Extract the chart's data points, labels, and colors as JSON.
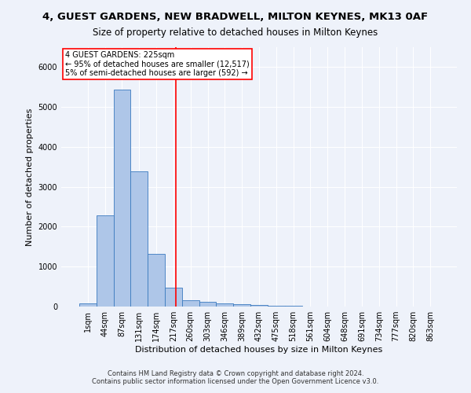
{
  "title": "4, GUEST GARDENS, NEW BRADWELL, MILTON KEYNES, MK13 0AF",
  "subtitle": "Size of property relative to detached houses in Milton Keynes",
  "xlabel": "Distribution of detached houses by size in Milton Keynes",
  "ylabel": "Number of detached properties",
  "footer_line1": "Contains HM Land Registry data © Crown copyright and database right 2024.",
  "footer_line2": "Contains public sector information licensed under the Open Government Licence v3.0.",
  "categories": [
    "1sqm",
    "44sqm",
    "87sqm",
    "131sqm",
    "174sqm",
    "217sqm",
    "260sqm",
    "303sqm",
    "346sqm",
    "389sqm",
    "432sqm",
    "475sqm",
    "518sqm",
    "561sqm",
    "604sqm",
    "648sqm",
    "691sqm",
    "734sqm",
    "777sqm",
    "820sqm",
    "863sqm"
  ],
  "bar_values": [
    75,
    2280,
    5430,
    3380,
    1310,
    480,
    165,
    110,
    80,
    50,
    30,
    20,
    10,
    5,
    3,
    2,
    1,
    1,
    1,
    0,
    0
  ],
  "bar_color": "#aec6e8",
  "bar_edge_color": "#3a7abf",
  "property_label": "4 GUEST GARDENS: 225sqm",
  "annotation_line1": "← 95% of detached houses are smaller (12,517)",
  "annotation_line2": "5% of semi-detached houses are larger (592) →",
  "vline_color": "red",
  "vline_position": 5.12,
  "ylim": [
    0,
    6500
  ],
  "background_color": "#eef2fa",
  "grid_color": "#ffffff",
  "title_fontsize": 9.5,
  "subtitle_fontsize": 8.5,
  "axis_label_fontsize": 8,
  "tick_fontsize": 7,
  "footer_fontsize": 6
}
